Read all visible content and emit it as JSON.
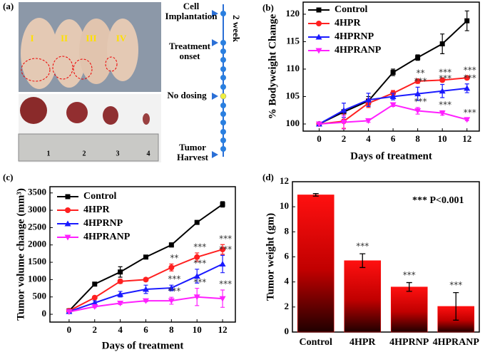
{
  "panel_a": {
    "panel_label": "(a)",
    "mice_labels": [
      "I",
      "II",
      "III",
      "IV"
    ],
    "ruler_labels": [
      "1",
      "2",
      "3",
      "4"
    ],
    "timeline": {
      "labels": [
        "Cell Implantation",
        "Treatment onset",
        "No dosing",
        "Tumor Harvest"
      ],
      "duration": "2 week"
    }
  },
  "chart_data": [
    {
      "type": "line",
      "panel_label": "(b)",
      "xlabel": "Days of treatment",
      "ylabel": "% Bodyweight Change",
      "x": [
        0,
        2,
        4,
        6,
        8,
        10,
        12
      ],
      "xlim": [
        -1.3,
        13
      ],
      "xticks": [
        0,
        2,
        4,
        6,
        8,
        10,
        12
      ],
      "ylim": [
        98.7,
        122.2
      ],
      "yticks": [
        100,
        105,
        110,
        115,
        120
      ],
      "legend": "upper left",
      "series": [
        {
          "name": "Control",
          "color": "#000000",
          "marker": "square",
          "values": [
            100,
            102.2,
            104.2,
            109.4,
            112.1,
            114.6,
            118.8
          ],
          "errors": [
            0,
            0.4,
            0.8,
            0.6,
            0.5,
            1.8,
            1.8
          ],
          "significance": [
            null,
            null,
            null,
            null,
            null,
            null,
            null
          ]
        },
        {
          "name": "4HPR",
          "color": "#ff2020",
          "marker": "circle",
          "values": [
            100,
            100.5,
            103.8,
            105.6,
            107.8,
            108,
            108.4
          ],
          "errors": [
            0,
            1.3,
            0.8,
            0.5,
            0.4,
            0.3,
            0.3
          ],
          "significance": [
            null,
            null,
            null,
            null,
            "**",
            "***",
            "***"
          ]
        },
        {
          "name": "4HPRNP",
          "color": "#1a1aff",
          "marker": "triangle-up",
          "values": [
            100,
            102.5,
            104.4,
            105,
            105.5,
            106,
            106.5
          ],
          "errors": [
            0,
            1.3,
            1.2,
            0.6,
            1.2,
            1.2,
            0.8
          ],
          "significance": [
            null,
            null,
            null,
            null,
            "***",
            "***",
            "***"
          ]
        },
        {
          "name": "4HPRANP",
          "color": "#ff20ff",
          "marker": "triangle-down",
          "values": [
            100,
            100.3,
            100.6,
            103.5,
            102.4,
            102,
            100.8
          ],
          "errors": [
            0,
            1.2,
            0.3,
            0.3,
            0.6,
            0.4,
            0.2
          ],
          "significance": [
            null,
            null,
            null,
            null,
            "***",
            "***",
            "***"
          ]
        }
      ]
    },
    {
      "type": "line",
      "panel_label": "(c)",
      "xlabel": "Days of treatment",
      "ylabel": "Tumor volume change (mm³)",
      "x": [
        0,
        2,
        4,
        6,
        8,
        10,
        12
      ],
      "xlim": [
        -1.5,
        13
      ],
      "xticks": [
        0,
        2,
        4,
        6,
        8,
        10,
        12
      ],
      "ylim": [
        -225,
        3680
      ],
      "yticks": [
        0,
        500,
        1000,
        1500,
        2000,
        2500,
        3000,
        3500
      ],
      "legend": "upper left",
      "series": [
        {
          "name": "Control",
          "color": "#000000",
          "marker": "square",
          "values": [
            100,
            870,
            1220,
            1650,
            2000,
            2650,
            3170
          ],
          "errors": [
            0,
            40,
            150,
            30,
            60,
            40,
            80
          ],
          "significance": [
            null,
            null,
            null,
            null,
            null,
            null,
            null
          ]
        },
        {
          "name": "4HPR",
          "color": "#ff2020",
          "marker": "circle",
          "values": [
            100,
            480,
            950,
            1000,
            1350,
            1650,
            1870
          ],
          "errors": [
            0,
            40,
            60,
            50,
            100,
            120,
            140
          ],
          "significance": [
            null,
            null,
            null,
            null,
            "**",
            "***",
            "***"
          ]
        },
        {
          "name": "4HPRNP",
          "color": "#1a1aff",
          "marker": "triangle-up",
          "values": [
            80,
            330,
            580,
            720,
            760,
            1100,
            1450
          ],
          "errors": [
            0,
            60,
            80,
            120,
            80,
            200,
            250
          ],
          "significance": [
            null,
            null,
            null,
            null,
            "***",
            "***",
            "***"
          ]
        },
        {
          "name": "4HPRANP",
          "color": "#ff20ff",
          "marker": "triangle-down",
          "values": [
            70,
            220,
            320,
            390,
            390,
            500,
            450
          ],
          "errors": [
            0,
            30,
            40,
            30,
            100,
            250,
            250
          ],
          "significance": [
            null,
            null,
            null,
            null,
            "***",
            "***",
            "***"
          ]
        }
      ]
    },
    {
      "type": "bar",
      "panel_label": "(d)",
      "ylabel": "Tumor weight (gm)",
      "annotation": "*** P<0.001",
      "categories": [
        "Control",
        "4HPR",
        "4HPRNP",
        "4HPRANP"
      ],
      "values": [
        10.95,
        5.7,
        3.6,
        2.05
      ],
      "errors": [
        0.1,
        0.55,
        0.35,
        1.1
      ],
      "significance": [
        null,
        "***",
        "***",
        "***"
      ],
      "color": "#ff0000",
      "ylim": [
        0,
        12
      ],
      "yticks": [
        0,
        2,
        4,
        6,
        8,
        10,
        12
      ]
    }
  ]
}
